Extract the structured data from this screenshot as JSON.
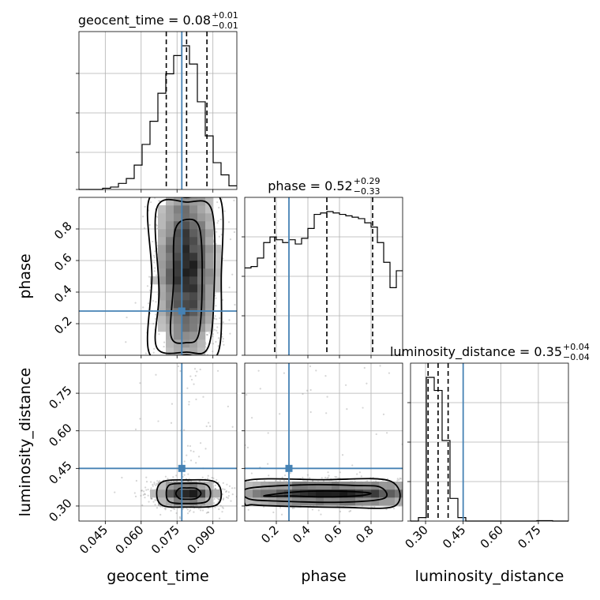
{
  "chart_data": {
    "type": "corner",
    "parameters": [
      "geocent_time",
      "phase",
      "luminosity_distance"
    ],
    "truths": {
      "geocent_time": 0.077,
      "phase": 0.28,
      "luminosity_distance": 0.45
    },
    "titles": [
      {
        "param": "geocent_time",
        "text": "geocent_time = 0.08",
        "plus": "+0.01",
        "minus": "−0.01"
      },
      {
        "param": "phase",
        "text": "phase = 0.52",
        "plus": "+0.29",
        "minus": "−0.33"
      },
      {
        "param": "luminosity_distance",
        "text": "luminosity_distance = 0.35",
        "plus": "+0.04",
        "minus": "−0.04"
      }
    ],
    "axis_labels": {
      "geocent_time": "geocent_time",
      "phase": "phase",
      "luminosity_distance": "luminosity_distance"
    },
    "ticks": {
      "geocent_time": [
        "0.045",
        "0.060",
        "0.075",
        "0.090"
      ],
      "phase": [
        "0.2",
        "0.4",
        "0.6",
        "0.8"
      ],
      "luminosity_distance": [
        "0.30",
        "0.45",
        "0.60",
        "0.75"
      ]
    },
    "ranges": {
      "geocent_time": [
        0.034,
        0.1
      ],
      "phase": [
        0.0,
        1.0
      ],
      "luminosity_distance": [
        0.24,
        0.87
      ]
    },
    "quantiles": {
      "geocent_time": [
        0.0705,
        0.079,
        0.0875
      ],
      "phase": [
        0.19,
        0.52,
        0.81
      ],
      "luminosity_distance": [
        0.31,
        0.35,
        0.39
      ]
    },
    "histograms": {
      "geocent_time": {
        "edges": [
          0.034,
          0.0373,
          0.0406,
          0.0439,
          0.0472,
          0.0505,
          0.0538,
          0.0571,
          0.0604,
          0.0637,
          0.067,
          0.0703,
          0.0736,
          0.0769,
          0.0802,
          0.0835,
          0.0868,
          0.0901,
          0.0934,
          0.0967,
          0.1
        ],
        "counts": [
          0,
          0,
          0,
          1,
          2,
          5,
          9,
          20,
          37,
          56,
          79,
          95,
          110,
          118,
          103,
          72,
          44,
          22,
          12,
          3
        ]
      },
      "phase": {
        "edges": [
          0.0,
          0.04,
          0.08,
          0.12,
          0.16,
          0.2,
          0.24,
          0.28,
          0.32,
          0.36,
          0.4,
          0.44,
          0.48,
          0.52,
          0.56,
          0.6,
          0.64,
          0.68,
          0.72,
          0.76,
          0.8,
          0.84,
          0.88,
          0.92,
          0.96,
          1.0
        ],
        "counts": [
          310,
          315,
          345,
          400,
          420,
          410,
          400,
          410,
          395,
          415,
          450,
          500,
          505,
          510,
          505,
          500,
          495,
          490,
          485,
          470,
          455,
          400,
          330,
          240,
          300
        ]
      },
      "luminosity_distance": {
        "edges": [
          0.24,
          0.2715,
          0.303,
          0.3345,
          0.366,
          0.3975,
          0.429,
          0.4605,
          0.492,
          0.5235,
          0.555,
          0.5865,
          0.618,
          0.6495,
          0.681,
          0.7125,
          0.744,
          0.7755,
          0.807,
          0.8385,
          0.87
        ],
        "counts": [
          0,
          8,
          330,
          300,
          185,
          52,
          8,
          0,
          0,
          0,
          0,
          0,
          0,
          0,
          0,
          0,
          1,
          1,
          0,
          0
        ]
      }
    },
    "scatter_2d": [
      {
        "x": "geocent_time",
        "y": "phase",
        "density": {
          "center": [
            0.079,
            0.58
          ],
          "spread": [
            0.0075,
            0.3
          ]
        },
        "contours": [
          {
            "level": 1,
            "points": [
              [
                0.0725,
                0.12
              ],
              [
                0.0735,
                0.45
              ],
              [
                0.074,
                0.78
              ],
              [
                0.079,
                0.86
              ],
              [
                0.0845,
                0.8
              ],
              [
                0.0855,
                0.45
              ],
              [
                0.084,
                0.13
              ],
              [
                0.079,
                0.08
              ]
            ]
          },
          {
            "level": 2,
            "points": [
              [
                0.0665,
                0.05
              ],
              [
                0.0675,
                0.4
              ],
              [
                0.0665,
                0.93
              ],
              [
                0.079,
                0.97
              ],
              [
                0.0895,
                0.92
              ],
              [
                0.0905,
                0.42
              ],
              [
                0.088,
                0.05
              ],
              [
                0.079,
                0.02
              ]
            ]
          },
          {
            "level": 3,
            "points": [
              [
                0.0635,
                0.01
              ],
              [
                0.0645,
                0.5
              ],
              [
                0.0635,
                0.995
              ],
              [
                0.079,
                0.999
              ],
              [
                0.093,
                0.995
              ],
              [
                0.0935,
                0.5
              ],
              [
                0.092,
                0.01
              ],
              [
                0.079,
                0.003
              ]
            ]
          }
        ]
      },
      {
        "x": "geocent_time",
        "y": "luminosity_distance",
        "density": {
          "center": [
            0.079,
            0.35
          ],
          "spread": [
            0.008,
            0.03
          ]
        },
        "contours": [
          {
            "level": 1,
            "points": [
              [
                0.0745,
                0.35
              ],
              [
                0.076,
                0.37
              ],
              [
                0.079,
                0.372
              ],
              [
                0.083,
                0.37
              ],
              [
                0.085,
                0.35
              ],
              [
                0.083,
                0.33
              ],
              [
                0.079,
                0.327
              ],
              [
                0.076,
                0.33
              ]
            ]
          },
          {
            "level": 2,
            "points": [
              [
                0.0705,
                0.35
              ],
              [
                0.072,
                0.385
              ],
              [
                0.079,
                0.39
              ],
              [
                0.087,
                0.386
              ],
              [
                0.089,
                0.35
              ],
              [
                0.087,
                0.316
              ],
              [
                0.079,
                0.31
              ],
              [
                0.072,
                0.316
              ]
            ]
          },
          {
            "level": 3,
            "points": [
              [
                0.0665,
                0.35
              ],
              [
                0.069,
                0.397
              ],
              [
                0.079,
                0.404
              ],
              [
                0.0905,
                0.398
              ],
              [
                0.0935,
                0.35
              ],
              [
                0.091,
                0.302
              ],
              [
                0.079,
                0.296
              ],
              [
                0.069,
                0.302
              ]
            ]
          }
        ]
      },
      {
        "x": "phase",
        "y": "luminosity_distance",
        "density": {
          "center": [
            0.55,
            0.35
          ],
          "spread": [
            0.3,
            0.03
          ]
        },
        "contours": [
          {
            "level": 1,
            "points": [
              [
                0.12,
                0.34
              ],
              [
                0.3,
                0.355
              ],
              [
                0.5,
                0.36
              ],
              [
                0.7,
                0.357
              ],
              [
                0.8,
                0.35
              ],
              [
                0.7,
                0.34
              ],
              [
                0.5,
                0.336
              ],
              [
                0.3,
                0.34
              ]
            ]
          },
          {
            "level": 2,
            "points": [
              [
                0.02,
                0.33
              ],
              [
                0.02,
                0.37
              ],
              [
                0.4,
                0.385
              ],
              [
                0.7,
                0.382
              ],
              [
                0.86,
                0.375
              ],
              [
                0.88,
                0.33
              ],
              [
                0.6,
                0.315
              ],
              [
                0.2,
                0.32
              ]
            ]
          },
          {
            "level": 3,
            "points": [
              [
                0.0,
                0.31
              ],
              [
                0.0,
                0.4
              ],
              [
                0.5,
                0.405
              ],
              [
                0.92,
                0.4
              ],
              [
                0.95,
                0.3
              ],
              [
                0.6,
                0.295
              ],
              [
                0.2,
                0.3
              ],
              [
                0.05,
                0.305
              ]
            ]
          }
        ]
      }
    ],
    "grid": true
  }
}
